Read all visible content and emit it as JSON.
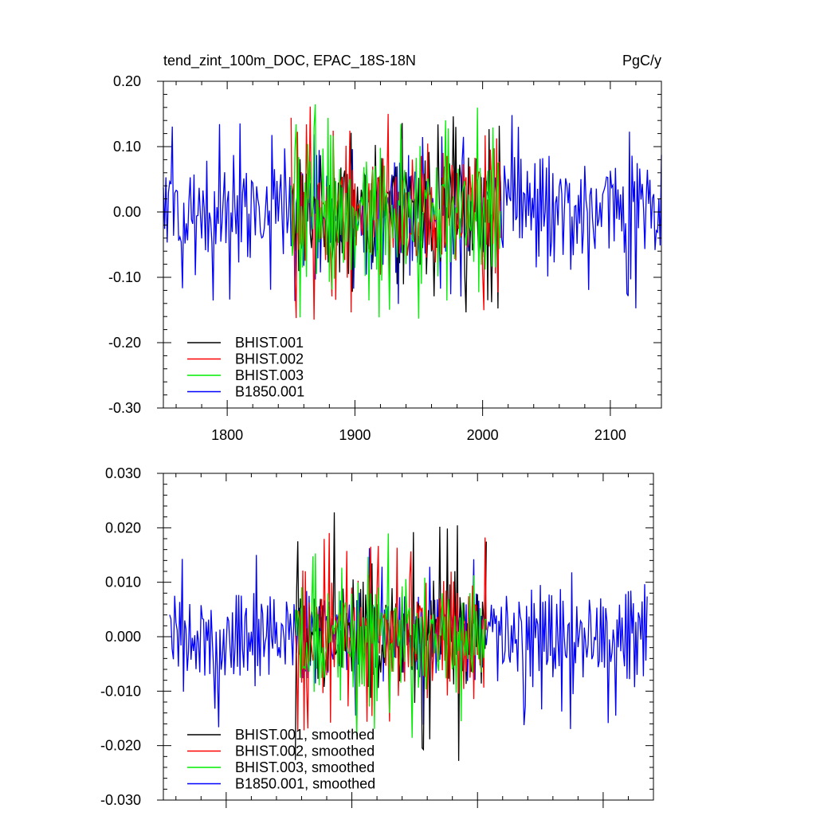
{
  "chart_data": [
    {
      "type": "line",
      "title_left": "tend_zint_100m_DOC, EPAC_18S-18N",
      "title_right": "PgC/y",
      "xlim": [
        1750,
        2140
      ],
      "ylim": [
        -0.3,
        0.2
      ],
      "x_ticks": [
        1800,
        1900,
        2000,
        2100
      ],
      "x_tick_labels": [
        "1800",
        "1900",
        "2000",
        "2100"
      ],
      "y_ticks": [
        0.2,
        0.1,
        0.0,
        -0.1,
        -0.2,
        -0.3
      ],
      "y_tick_labels": [
        "0.20",
        "0.10",
        "0.00",
        "-0.10",
        "-0.20",
        "-0.30"
      ],
      "legend_placement": "bottom-left",
      "series": [
        {
          "name": "BHIST.001",
          "color": "#000000",
          "start": 1850,
          "end": 2014,
          "amp": 0.085,
          "spike": 0.16
        },
        {
          "name": "BHIST.002",
          "color": "#ff0000",
          "start": 1850,
          "end": 2014,
          "amp": 0.085,
          "spike": 0.165
        },
        {
          "name": "BHIST.003",
          "color": "#00ee00",
          "start": 1850,
          "end": 2014,
          "amp": 0.085,
          "spike": 0.165
        },
        {
          "name": "B1850.001",
          "color": "#0000ff",
          "start": 1750,
          "end": 2140,
          "amp": 0.075,
          "spike": 0.15
        }
      ]
    },
    {
      "type": "line",
      "xlim": [
        1750,
        2140
      ],
      "ylim": [
        -0.03,
        0.03
      ],
      "x_ticks": [
        1800,
        1900,
        2000,
        2100
      ],
      "y_ticks": [
        0.03,
        0.02,
        0.01,
        0.0,
        -0.01,
        -0.02,
        -0.03
      ],
      "y_tick_labels": [
        "0.030",
        "0.020",
        "0.010",
        "0.000",
        "-0.010",
        "-0.020",
        "-0.030"
      ],
      "legend_placement": "bottom-left",
      "series": [
        {
          "name": "BHIST.001, smoothed",
          "color": "#000000",
          "start": 1855,
          "end": 2007,
          "amp": 0.009,
          "spike": 0.023
        },
        {
          "name": "BHIST.002, smoothed",
          "color": "#ff0000",
          "start": 1855,
          "end": 2007,
          "amp": 0.009,
          "spike": 0.02
        },
        {
          "name": "BHIST.003, smoothed",
          "color": "#00ee00",
          "start": 1855,
          "end": 2007,
          "amp": 0.009,
          "spike": 0.019
        },
        {
          "name": "B1850.001, smoothed",
          "color": "#0000ff",
          "start": 1755,
          "end": 2135,
          "amp": 0.007,
          "spike": 0.017
        }
      ]
    }
  ]
}
